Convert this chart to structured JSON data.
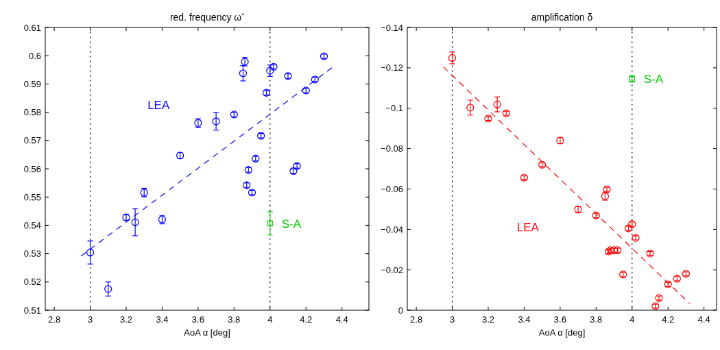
{
  "chart_data": [
    {
      "type": "scatter",
      "title": "red. frequency ω$^{*}$",
      "xlabel": "AoA α [deg]",
      "xlim": [
        2.75,
        4.55
      ],
      "xticks": [
        2.8,
        3,
        3.2,
        3.4,
        3.6,
        3.8,
        4,
        4.2,
        4.4
      ],
      "ylim": [
        0.51,
        0.61
      ],
      "yticks": [
        0.51,
        0.52,
        0.53,
        0.54,
        0.55,
        0.56,
        0.57,
        0.58,
        0.59,
        0.6,
        0.61
      ],
      "ref_lines": [
        {
          "axis": "x",
          "value": 3,
          "color": "#000000",
          "line_style": "dotted"
        },
        {
          "axis": "x",
          "value": 4,
          "color": "#000000",
          "line_style": "dotted"
        }
      ],
      "series": [
        {
          "name": "LEA",
          "color": "#0000ff",
          "marker": "circle",
          "x": [
            3,
            3.1,
            3.2,
            3.25,
            3.3,
            3.4,
            3.5,
            3.6,
            3.7,
            3.8,
            3.85,
            3.86,
            3.98,
            4,
            4.02,
            4.1,
            4.2,
            4.25,
            4.3,
            3.95,
            3.92,
            3.88,
            3.87,
            3.9,
            4.13,
            4.15
          ],
          "values": [
            0.5304,
            0.5175,
            0.5428,
            0.5411,
            0.5516,
            0.5421,
            0.5647,
            0.5762,
            0.5768,
            0.5792,
            0.5938,
            0.5979,
            0.5869,
            0.5947,
            0.5961,
            0.5928,
            0.5877,
            0.5916,
            0.5998,
            0.5717,
            0.5636,
            0.5596,
            0.5542,
            0.5516,
            0.5592,
            0.561
          ],
          "errors": [
            0.0041,
            0.0025,
            0.001,
            0.0048,
            0.0015,
            0.0015,
            0.001,
            0.0015,
            0.0031,
            0.0008,
            0.0027,
            0.0015,
            0.0008,
            0.002,
            0.0008,
            0.0008,
            0.0008,
            0.0008,
            0.0008,
            0.0008,
            0.0008,
            0.0008,
            0.0008,
            0.0008,
            0.0008,
            0.0008
          ]
        },
        {
          "name": "S-A",
          "color": "#00cc00",
          "marker": "square",
          "x": [
            4
          ],
          "values": [
            0.5407
          ],
          "errors": [
            0.0041
          ]
        },
        {
          "type": "line",
          "color": "#0000ff",
          "line_style": "dashed",
          "x": [
            2.95,
            4.345
          ],
          "values": [
            0.5292,
            0.5958
          ]
        }
      ]
    },
    {
      "type": "scatter",
      "title": "amplification δ",
      "xlabel": "AoA α [deg]",
      "xlim": [
        2.75,
        4.47
      ],
      "xticks": [
        2.8,
        3,
        3.2,
        3.4,
        3.6,
        3.8,
        4,
        4.2,
        4.4
      ],
      "ylim": [
        0,
        -0.14
      ],
      "yticks": [
        {
          "value": -0.14,
          "label": "−0.14"
        },
        {
          "value": -0.12,
          "label": "−0.12"
        },
        {
          "value": -0.1,
          "label": "−0.1"
        },
        {
          "value": -0.08,
          "label": "−0.08"
        },
        {
          "value": -0.06,
          "label": "−0.06"
        },
        {
          "value": -0.04,
          "label": "−0.04"
        },
        {
          "value": -0.02,
          "label": "−0.02"
        },
        0
      ],
      "ref_lines": [
        {
          "axis": "x",
          "value": 3,
          "color": "#000000",
          "line_style": "dotted"
        },
        {
          "axis": "x",
          "value": 4,
          "color": "#000000",
          "line_style": "dotted"
        }
      ],
      "series": [
        {
          "name": "LEA",
          "color": "#ff0000",
          "marker": "circle",
          "x": [
            3,
            3.1,
            3.2,
            3.25,
            3.3,
            3.4,
            3.5,
            3.6,
            3.7,
            3.8,
            3.85,
            3.86,
            3.98,
            4,
            4.02,
            3.87,
            3.88,
            3.9,
            3.92,
            3.95,
            4.1,
            4.2,
            4.25,
            4.3,
            4.15,
            4.13
          ],
          "values": [
            -0.1249,
            -0.1003,
            -0.0949,
            -0.1019,
            -0.0975,
            -0.0656,
            -0.072,
            -0.084,
            -0.0499,
            -0.0469,
            -0.0564,
            -0.0598,
            -0.0405,
            -0.0426,
            -0.0358,
            -0.029,
            -0.0297,
            -0.0297,
            -0.0297,
            -0.0177,
            -0.0281,
            -0.0128,
            -0.0156,
            -0.018,
            -0.006,
            -0.002
          ],
          "errors": [
            0.0029,
            0.0037,
            0.001,
            0.0037,
            0.001,
            0.001,
            0.001,
            0.0015,
            0.0015,
            0.001,
            0.002,
            0.001,
            0.001,
            0.001,
            0.001,
            0.001,
            0.001,
            0.001,
            0.001,
            0.001,
            0.001,
            0.001,
            0.001,
            0.001,
            0.001,
            0.001
          ]
        },
        {
          "name": "S-A",
          "color": "#00cc00",
          "marker": "square",
          "x": [
            4
          ],
          "values": [
            -0.1145
          ],
          "errors": [
            0.0015
          ]
        },
        {
          "type": "line",
          "color": "#ff0000",
          "line_style": "dashed",
          "x": [
            2.95,
            4.32
          ],
          "values": [
            -0.1205,
            -0.0033
          ]
        }
      ]
    }
  ]
}
